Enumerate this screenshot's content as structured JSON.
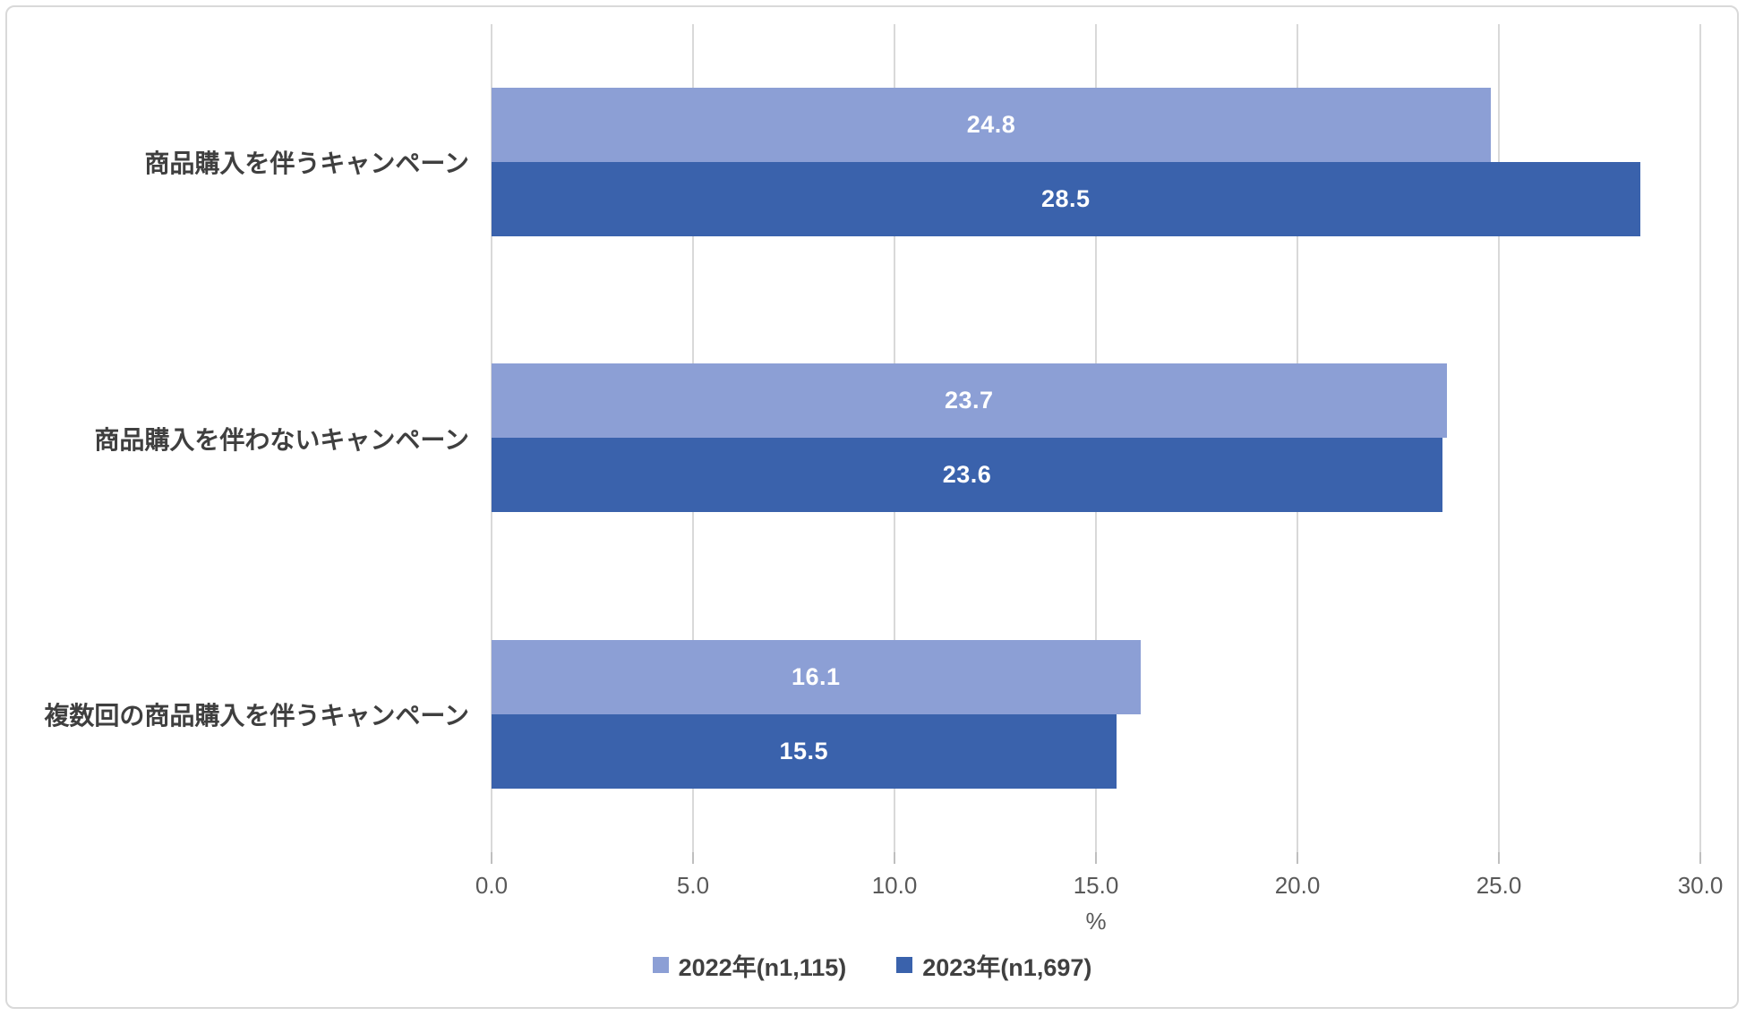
{
  "chart_data": {
    "type": "bar",
    "orientation": "horizontal",
    "title": "",
    "categories": [
      "商品購入を伴うキャンペーン",
      "商品購入を伴わないキャンペーン",
      "複数回の商品購入を伴うキャンペーン"
    ],
    "series": [
      {
        "name": "2022年(n1,115)",
        "color": "#8c9fd5",
        "values": [
          24.8,
          23.7,
          16.1
        ]
      },
      {
        "name": "2023年(n1,697)",
        "color": "#3a62ac",
        "values": [
          28.5,
          23.6,
          15.5
        ]
      }
    ],
    "xlabel": "%",
    "xlim": [
      0,
      30
    ],
    "x_ticks": [
      0,
      5,
      10,
      15,
      20,
      25,
      30
    ],
    "x_tick_labels": [
      "0.0",
      "5.0",
      "10.0",
      "15.0",
      "20.0",
      "25.0",
      "30.0"
    ],
    "grid": "vertical-only",
    "legend_position": "bottom-center",
    "value_labels": "inside-center, white, one decimal"
  },
  "colors": {
    "background": "#ffffff",
    "chart_border": "#d9d9d9",
    "gridline": "#d9d9d9",
    "tick_mark": "#bfbfbf",
    "axis_text": "#595959",
    "category_text": "#3f3f3f",
    "legend_text": "#404040",
    "value_label_text": "#ffffff",
    "series_2022": "#8c9fd5",
    "series_2023": "#3a62ac"
  }
}
